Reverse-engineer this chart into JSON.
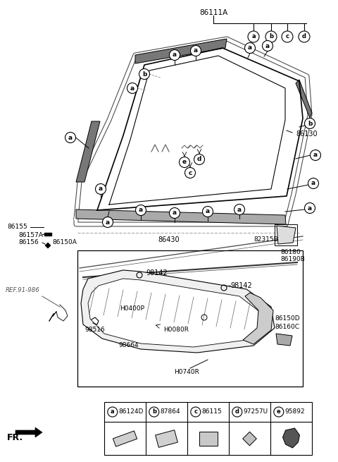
{
  "bg_color": "#ffffff",
  "line_color": "#000000",
  "legend": [
    {
      "letter": "a",
      "code": "86124D"
    },
    {
      "letter": "b",
      "code": "87864"
    },
    {
      "letter": "c",
      "code": "86115"
    },
    {
      "letter": "d",
      "code": "97257U"
    },
    {
      "letter": "e",
      "code": "95892"
    }
  ]
}
